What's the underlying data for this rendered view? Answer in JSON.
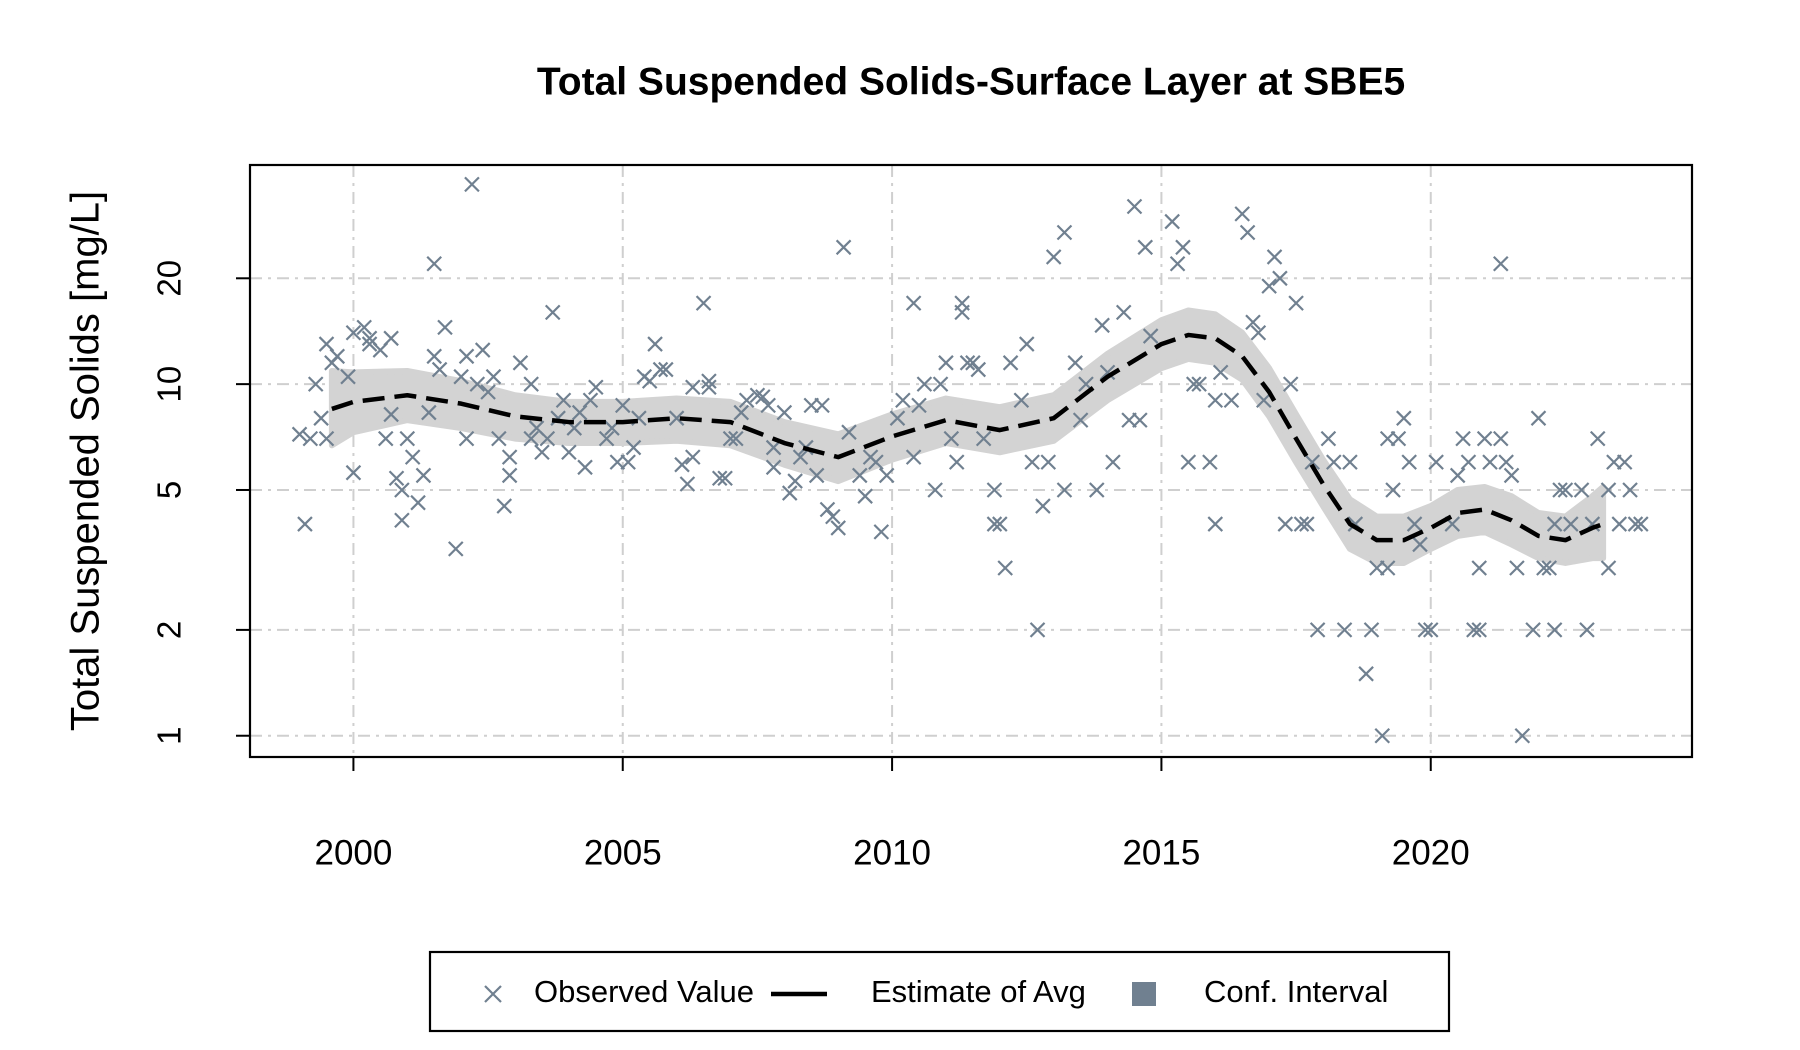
{
  "chart_data": {
    "type": "scatter",
    "title": "Total Suspended Solids-Surface Layer at SBE5",
    "y_label": "Total Suspended Solids [mg/L]",
    "log_y": true,
    "grid": true,
    "legend": "bottom",
    "xlim": [
      1998.08,
      2024.85
    ],
    "ylim": [
      0.87,
      42
    ],
    "xticks": [
      2000,
      2005,
      2010,
      2015,
      2020
    ],
    "yticks": [
      1,
      2,
      5,
      10,
      20
    ],
    "series": [
      {
        "name": "Conf. Interval",
        "type": "band",
        "color": "#d3d3d3",
        "legend_color": "#708090",
        "x": [
          1999.6,
          2000,
          2001,
          2002,
          2003,
          2004,
          2005,
          2006,
          2007,
          2008,
          2009,
          2010,
          2011,
          2012,
          2013,
          2014,
          2015,
          2015.5,
          2016,
          2016.5,
          2017,
          2017.5,
          2018,
          2018.5,
          2019,
          2019.5,
          2020,
          2020.5,
          2021,
          2021.5,
          2022,
          2022.5,
          2023,
          2023.2
        ],
        "upper": [
          10.9,
          10.8,
          10.9,
          10.2,
          9.3,
          8.9,
          8.9,
          9.1,
          8.9,
          7.8,
          7.2,
          8.2,
          9.1,
          8.6,
          9.3,
          12.2,
          15.2,
          16.2,
          15.8,
          14.0,
          11.1,
          8.2,
          6.1,
          4.7,
          4.2,
          4.2,
          4.5,
          5.0,
          5.1,
          4.8,
          4.3,
          4.2,
          4.8,
          5.1
        ],
        "lower": [
          6.7,
          7.3,
          7.9,
          7.5,
          7.0,
          6.8,
          6.8,
          6.9,
          6.7,
          5.9,
          5.3,
          6.1,
          6.8,
          6.4,
          6.9,
          9.0,
          11.1,
          11.8,
          11.5,
          10.3,
          8.1,
          6.0,
          4.5,
          3.4,
          3.1,
          3.1,
          3.4,
          3.7,
          3.8,
          3.5,
          3.2,
          3.1,
          3.2,
          3.2
        ]
      },
      {
        "name": "Observed Value",
        "type": "scatter",
        "color": "#708090",
        "x": [
          1999.0,
          1999.1,
          1999.2,
          1999.3,
          1999.4,
          1999.5,
          1999.5,
          1999.6,
          1999.7,
          1999.9,
          2000.0,
          2000.0,
          2000.2,
          2000.3,
          2000.3,
          2000.5,
          2000.6,
          2000.7,
          2000.7,
          2000.8,
          2000.9,
          2000.9,
          2001.0,
          2001.1,
          2001.2,
          2001.3,
          2001.4,
          2001.5,
          2001.5,
          2001.6,
          2001.7,
          2001.9,
          2002.0,
          2002.1,
          2002.1,
          2002.2,
          2002.3,
          2002.4,
          2002.5,
          2002.6,
          2002.7,
          2002.8,
          2002.9,
          2002.9,
          2003.1,
          2003.3,
          2003.3,
          2003.4,
          2003.5,
          2003.6,
          2003.7,
          2003.8,
          2003.9,
          2004.0,
          2004.1,
          2004.2,
          2004.3,
          2004.4,
          2004.5,
          2004.7,
          2004.8,
          2004.9,
          2005.0,
          2005.1,
          2005.2,
          2005.3,
          2005.4,
          2005.5,
          2005.6,
          2005.7,
          2005.8,
          2006.0,
          2006.1,
          2006.2,
          2006.3,
          2006.3,
          2006.5,
          2006.6,
          2006.6,
          2006.8,
          2006.9,
          2007.0,
          2007.1,
          2007.2,
          2007.3,
          2007.5,
          2007.6,
          2007.7,
          2007.8,
          2007.8,
          2008.0,
          2008.1,
          2008.2,
          2008.3,
          2008.4,
          2008.5,
          2008.6,
          2008.7,
          2008.8,
          2008.9,
          2009.0,
          2009.1,
          2009.2,
          2009.4,
          2009.5,
          2009.6,
          2009.7,
          2009.8,
          2009.9,
          2010.1,
          2010.2,
          2010.4,
          2010.4,
          2010.5,
          2010.6,
          2010.8,
          2010.9,
          2011.0,
          2011.1,
          2011.2,
          2011.3,
          2011.3,
          2011.4,
          2011.5,
          2011.6,
          2011.7,
          2011.9,
          2011.9,
          2012.0,
          2012.1,
          2012.2,
          2012.4,
          2012.5,
          2012.6,
          2012.7,
          2012.8,
          2012.9,
          2013.0,
          2013.2,
          2013.2,
          2013.4,
          2013.5,
          2013.6,
          2013.8,
          2013.9,
          2014.0,
          2014.1,
          2014.3,
          2014.4,
          2014.5,
          2014.6,
          2014.7,
          2014.8,
          2015.2,
          2015.3,
          2015.4,
          2015.5,
          2015.6,
          2015.7,
          2015.9,
          2016.0,
          2016.0,
          2016.1,
          2016.3,
          2016.5,
          2016.6,
          2016.7,
          2016.8,
          2016.9,
          2017.0,
          2017.1,
          2017.2,
          2017.3,
          2017.4,
          2017.5,
          2017.6,
          2017.7,
          2017.8,
          2017.9,
          2018.1,
          2018.2,
          2018.4,
          2018.5,
          2018.6,
          2018.8,
          2018.9,
          2019.0,
          2019.1,
          2019.2,
          2019.2,
          2019.3,
          2019.4,
          2019.5,
          2019.6,
          2019.7,
          2019.8,
          2019.9,
          2020.0,
          2020.1,
          2020.4,
          2020.5,
          2020.6,
          2020.7,
          2020.8,
          2020.9,
          2020.9,
          2021.0,
          2021.1,
          2021.3,
          2021.3,
          2021.4,
          2021.5,
          2021.6,
          2021.7,
          2021.9,
          2022.0,
          2022.1,
          2022.2,
          2022.3,
          2022.3,
          2022.4,
          2022.5,
          2022.6,
          2022.8,
          2022.9,
          2023.0,
          2023.1,
          2023.3,
          2023.3,
          2023.4,
          2023.5,
          2023.6,
          2023.7,
          2023.8,
          2023.9
        ],
        "values": [
          7.2,
          4,
          7,
          10,
          8,
          13,
          7,
          11.5,
          12,
          10.5,
          5.6,
          14,
          14.5,
          13,
          13.5,
          12.5,
          7,
          13.5,
          8.2,
          5.4,
          4.1,
          5,
          7,
          6.2,
          4.6,
          5.5,
          8.3,
          22,
          12,
          11,
          14.5,
          3.4,
          10.5,
          12,
          7,
          37,
          10,
          12.5,
          9.5,
          10.5,
          7,
          4.5,
          5.5,
          6.2,
          11.5,
          10,
          7,
          7.5,
          6.4,
          7,
          16,
          8,
          9,
          6.4,
          7.5,
          8.3,
          5.8,
          9,
          9.8,
          7,
          7.5,
          6,
          8.7,
          6,
          6.6,
          8,
          10.5,
          10.2,
          13,
          11,
          11,
          8,
          5.9,
          5.2,
          9.8,
          6.2,
          17,
          9.8,
          10.2,
          5.4,
          5.4,
          7,
          7,
          8.3,
          9,
          9.3,
          9.2,
          8.7,
          6.6,
          5.8,
          8.3,
          4.9,
          5.3,
          6.2,
          6.6,
          8.7,
          5.5,
          8.7,
          4.4,
          4.2,
          3.9,
          24.5,
          7.3,
          5.5,
          4.8,
          6.2,
          6,
          3.8,
          5.5,
          8,
          9,
          6.2,
          17,
          8.7,
          10,
          5,
          10,
          11.5,
          7,
          6,
          16,
          17,
          11.5,
          11.5,
          11,
          7,
          5,
          4,
          4,
          3,
          11.5,
          9,
          13,
          6,
          2,
          4.5,
          6,
          23,
          5,
          27,
          11.5,
          7.9,
          10,
          5,
          14.7,
          10.8,
          6,
          16,
          7.9,
          32,
          7.9,
          24.5,
          13.7,
          29,
          22,
          24.5,
          6,
          10,
          10,
          6,
          9,
          4,
          10.8,
          9,
          30.5,
          27,
          15,
          14,
          9,
          19,
          23,
          20,
          4,
          10,
          17,
          4,
          4,
          6,
          2,
          7,
          6,
          2,
          6,
          4,
          1.5,
          2,
          3,
          1,
          3,
          7,
          5,
          7,
          8,
          6,
          4,
          3.5,
          2,
          2,
          6,
          4,
          5.5,
          7,
          6,
          2,
          3,
          2,
          7,
          6,
          22,
          7,
          6,
          5.5,
          3,
          1,
          2,
          8,
          3,
          3,
          2,
          4,
          5,
          5,
          4,
          5,
          2,
          4,
          7,
          3,
          5,
          6,
          4,
          6,
          5,
          4,
          4
        ]
      },
      {
        "name": "Estimate of Avg",
        "type": "line",
        "color": "#000000",
        "x": [
          1999.6,
          2000,
          2001,
          2002,
          2003,
          2004,
          2005,
          2006,
          2007,
          2008,
          2009,
          2010,
          2011,
          2012,
          2013,
          2014,
          2015,
          2015.5,
          2016,
          2016.5,
          2017,
          2017.5,
          2018,
          2018.5,
          2019,
          2019.5,
          2020,
          2020.5,
          2021,
          2021.5,
          2022,
          2022.5,
          2023,
          2023.2
        ],
        "values": [
          8.5,
          8.9,
          9.3,
          8.8,
          8.1,
          7.8,
          7.8,
          8.0,
          7.8,
          6.8,
          6.2,
          7.1,
          7.9,
          7.4,
          8.0,
          10.5,
          13.0,
          13.8,
          13.5,
          12.0,
          9.5,
          7.0,
          5.2,
          4.0,
          3.6,
          3.6,
          3.9,
          4.3,
          4.4,
          4.1,
          3.7,
          3.6,
          3.9,
          4.0
        ]
      }
    ],
    "legend_order": [
      1,
      2,
      0
    ]
  }
}
